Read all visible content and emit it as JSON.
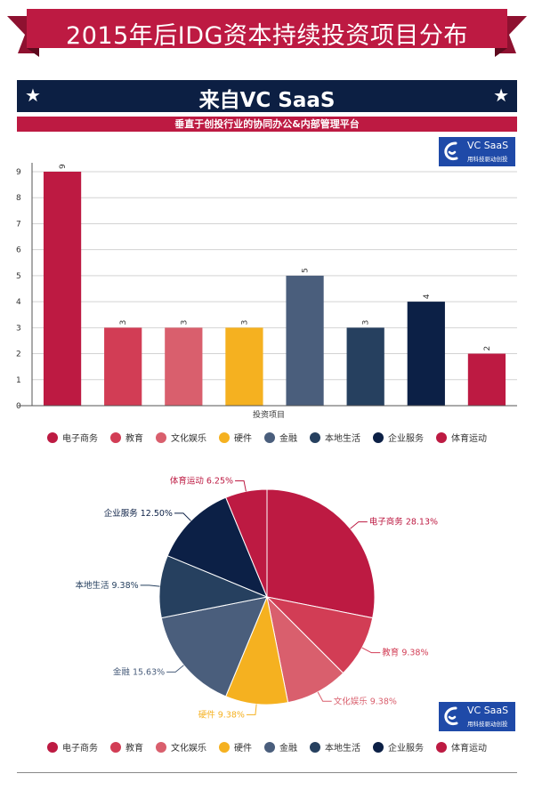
{
  "header": {
    "title": "2015年后IDG资本持续投资项目分布",
    "brand_title": "来自VC SaaS",
    "subtitle": "垂直于创投行业的协同办公&内部管理平台",
    "star_glyph": "★",
    "ribbon_color": "#bd1a42",
    "navy_color": "#0c1f43"
  },
  "logo": {
    "name": "VC SaaS",
    "tagline": "用科技驱动创投",
    "bg_color": "#1f4aa8"
  },
  "chart_data": [
    {
      "type": "bar",
      "xlabel": "投资项目",
      "ylabel": "",
      "ylim": [
        0,
        9
      ],
      "yticks": [
        0,
        1,
        2,
        3,
        4,
        5,
        6,
        7,
        8,
        9
      ],
      "grid": true,
      "legend_position": "bottom",
      "categories": [
        "电子商务",
        "教育",
        "文化娱乐",
        "硬件",
        "金融",
        "本地生活",
        "企业服务",
        "体育运动"
      ],
      "values": [
        9,
        3,
        3,
        3,
        5,
        3,
        4,
        2
      ],
      "colors": [
        "#bd1a42",
        "#d23d55",
        "#d95f6d",
        "#f5b120",
        "#4a5e7c",
        "#26405f",
        "#0c2046",
        "#bd1a42"
      ]
    },
    {
      "type": "pie",
      "legend_position": "bottom",
      "categories": [
        "电子商务",
        "教育",
        "文化娱乐",
        "硬件",
        "金融",
        "本地生活",
        "企业服务",
        "体育运动"
      ],
      "values": [
        28.13,
        9.38,
        9.38,
        9.38,
        15.63,
        9.38,
        12.5,
        6.25
      ],
      "labels": [
        "电子商务 28.13%",
        "教育 9.38%",
        "文化娱乐 9.38%",
        "硬件 9.38%",
        "金融 15.63%",
        "本地生活 9.38%",
        "企业服务 12.50%",
        "体育运动 6.25%"
      ],
      "colors": [
        "#bd1a42",
        "#d23d55",
        "#d95f6d",
        "#f5b120",
        "#4a5e7c",
        "#26405f",
        "#0c2046",
        "#bd1a42"
      ]
    }
  ]
}
